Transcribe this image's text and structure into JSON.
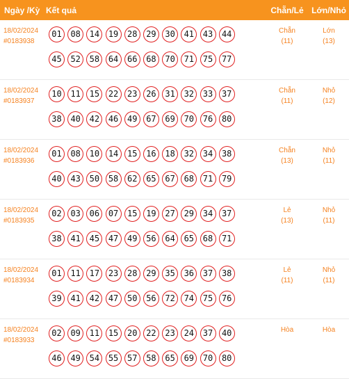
{
  "header": {
    "date_label": "Ngày /Kỳ",
    "result_label": "Kết quả",
    "chanle_label": "Chẵn/Lẻ",
    "lonnho_label": "Lớn/Nhỏ"
  },
  "rows": [
    {
      "date": "18/02/2024",
      "period": "#0183938",
      "balls": [
        "01",
        "08",
        "14",
        "19",
        "28",
        "29",
        "30",
        "41",
        "43",
        "44",
        "45",
        "52",
        "58",
        "64",
        "66",
        "68",
        "70",
        "71",
        "75",
        "77"
      ],
      "chanle": "Chẵn",
      "chanle_count": "(11)",
      "lonnho": "Lớn",
      "lonnho_count": "(13)"
    },
    {
      "date": "18/02/2024",
      "period": "#0183937",
      "balls": [
        "10",
        "11",
        "15",
        "22",
        "23",
        "26",
        "31",
        "32",
        "33",
        "37",
        "38",
        "40",
        "42",
        "46",
        "49",
        "67",
        "69",
        "70",
        "76",
        "80"
      ],
      "chanle": "Chẵn",
      "chanle_count": "(11)",
      "lonnho": "Nhỏ",
      "lonnho_count": "(12)"
    },
    {
      "date": "18/02/2024",
      "period": "#0183936",
      "balls": [
        "01",
        "08",
        "10",
        "14",
        "15",
        "16",
        "18",
        "32",
        "34",
        "38",
        "40",
        "43",
        "50",
        "58",
        "62",
        "65",
        "67",
        "68",
        "71",
        "79"
      ],
      "chanle": "Chẵn",
      "chanle_count": "(13)",
      "lonnho": "Nhỏ",
      "lonnho_count": "(11)"
    },
    {
      "date": "18/02/2024",
      "period": "#0183935",
      "balls": [
        "02",
        "03",
        "06",
        "07",
        "15",
        "19",
        "27",
        "29",
        "34",
        "37",
        "38",
        "41",
        "45",
        "47",
        "49",
        "56",
        "64",
        "65",
        "68",
        "71"
      ],
      "chanle": "Lẻ",
      "chanle_count": "(13)",
      "lonnho": "Nhỏ",
      "lonnho_count": "(11)"
    },
    {
      "date": "18/02/2024",
      "period": "#0183934",
      "balls": [
        "01",
        "11",
        "17",
        "23",
        "28",
        "29",
        "35",
        "36",
        "37",
        "38",
        "39",
        "41",
        "42",
        "47",
        "50",
        "56",
        "72",
        "74",
        "75",
        "76"
      ],
      "chanle": "Lẻ",
      "chanle_count": "(11)",
      "lonnho": "Nhỏ",
      "lonnho_count": "(11)"
    },
    {
      "date": "18/02/2024",
      "period": "#0183933",
      "balls": [
        "02",
        "09",
        "11",
        "15",
        "20",
        "22",
        "23",
        "24",
        "37",
        "40",
        "46",
        "49",
        "54",
        "55",
        "57",
        "58",
        "65",
        "69",
        "70",
        "80"
      ],
      "chanle": "Hòa",
      "chanle_count": "",
      "lonnho": "Hòa",
      "lonnho_count": ""
    }
  ]
}
